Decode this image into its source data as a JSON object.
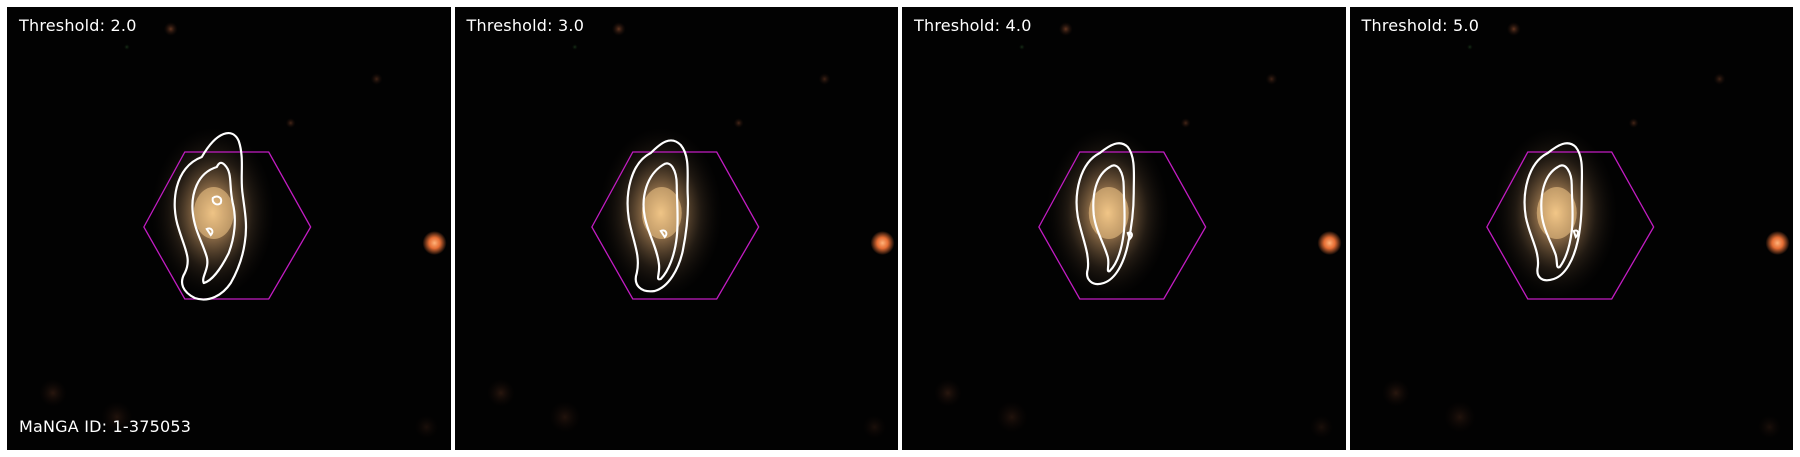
{
  "panels": [
    {
      "threshold_label": "Threshold: 2.0",
      "id_label": "MaNGA ID: 1-375053"
    },
    {
      "threshold_label": "Threshold: 3.0",
      "id_label": ""
    },
    {
      "threshold_label": "Threshold: 4.0",
      "id_label": ""
    },
    {
      "threshold_label": "Threshold: 5.0",
      "id_label": ""
    }
  ],
  "colors": {
    "background": "#020202",
    "galaxy_core": "#f4c889",
    "galaxy_halo": "#8a6a4a",
    "contour": "#ffffff",
    "ifu_hexagon": "#c21cc2",
    "field_star": "#ff7a3a"
  }
}
